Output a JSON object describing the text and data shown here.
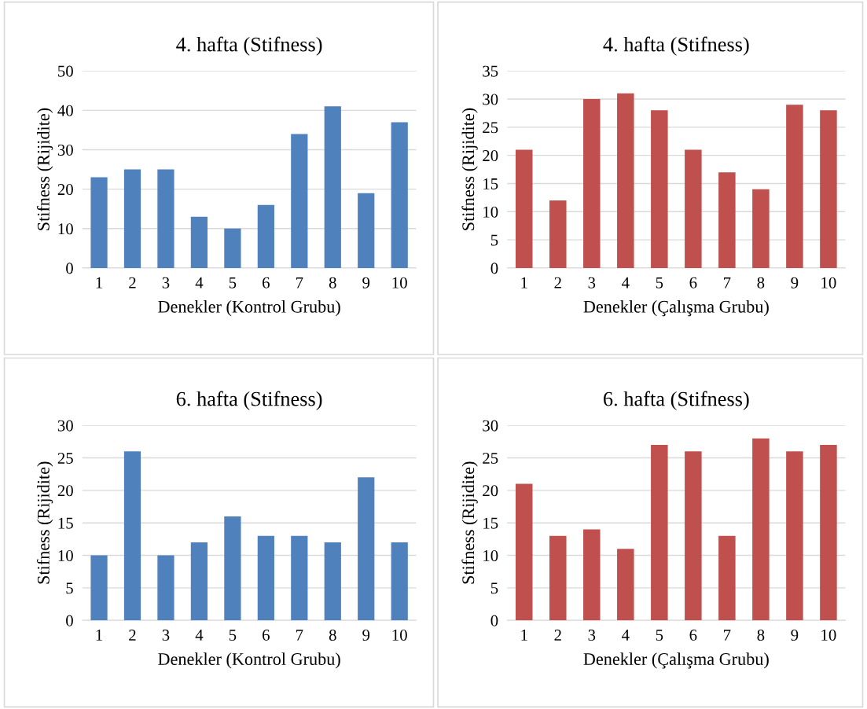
{
  "chart_data": [
    {
      "type": "bar",
      "title": "4. hafta (Stifness)",
      "xlabel": "Denekler (Kontrol Grubu)",
      "ylabel": "Stifness (Rijidite)",
      "categories": [
        "1",
        "2",
        "3",
        "4",
        "5",
        "6",
        "7",
        "8",
        "9",
        "10"
      ],
      "values": [
        23,
        25,
        25,
        13,
        10,
        16,
        34,
        41,
        19,
        37
      ],
      "color": "#4f81bd",
      "ylim": [
        0,
        50
      ],
      "yticks": [
        0,
        10,
        20,
        30,
        40,
        50
      ],
      "grid": "y"
    },
    {
      "type": "bar",
      "title": "4. hafta (Stifness)",
      "xlabel": "Denekler (Çalışma Grubu)",
      "ylabel": "Stifness (Rijidite)",
      "categories": [
        "1",
        "2",
        "3",
        "4",
        "5",
        "6",
        "7",
        "8",
        "9",
        "10"
      ],
      "values": [
        21,
        12,
        30,
        31,
        28,
        21,
        17,
        14,
        29,
        28
      ],
      "color": "#c0504d",
      "ylim": [
        0,
        35
      ],
      "yticks": [
        0,
        5,
        10,
        15,
        20,
        25,
        30,
        35
      ],
      "grid": "y"
    },
    {
      "type": "bar",
      "title": "6. hafta (Stifness)",
      "xlabel": "Denekler (Kontrol Grubu)",
      "ylabel": "Stifness (Rijidite)",
      "categories": [
        "1",
        "2",
        "3",
        "4",
        "5",
        "6",
        "7",
        "8",
        "9",
        "10"
      ],
      "values": [
        10,
        26,
        10,
        12,
        16,
        13,
        13,
        12,
        22,
        12
      ],
      "color": "#4f81bd",
      "ylim": [
        0,
        30
      ],
      "yticks": [
        0,
        5,
        10,
        15,
        20,
        25,
        30
      ],
      "grid": "y"
    },
    {
      "type": "bar",
      "title": "6. hafta (Stifness)",
      "xlabel": "Denekler (Çalışma Grubu)",
      "ylabel": "Stifness (Rijidite)",
      "categories": [
        "1",
        "2",
        "3",
        "4",
        "5",
        "6",
        "7",
        "8",
        "9",
        "10"
      ],
      "values": [
        21,
        13,
        14,
        11,
        27,
        26,
        13,
        28,
        26,
        27
      ],
      "color": "#c0504d",
      "ylim": [
        0,
        30
      ],
      "yticks": [
        0,
        5,
        10,
        15,
        20,
        25,
        30
      ],
      "grid": "y"
    }
  ]
}
